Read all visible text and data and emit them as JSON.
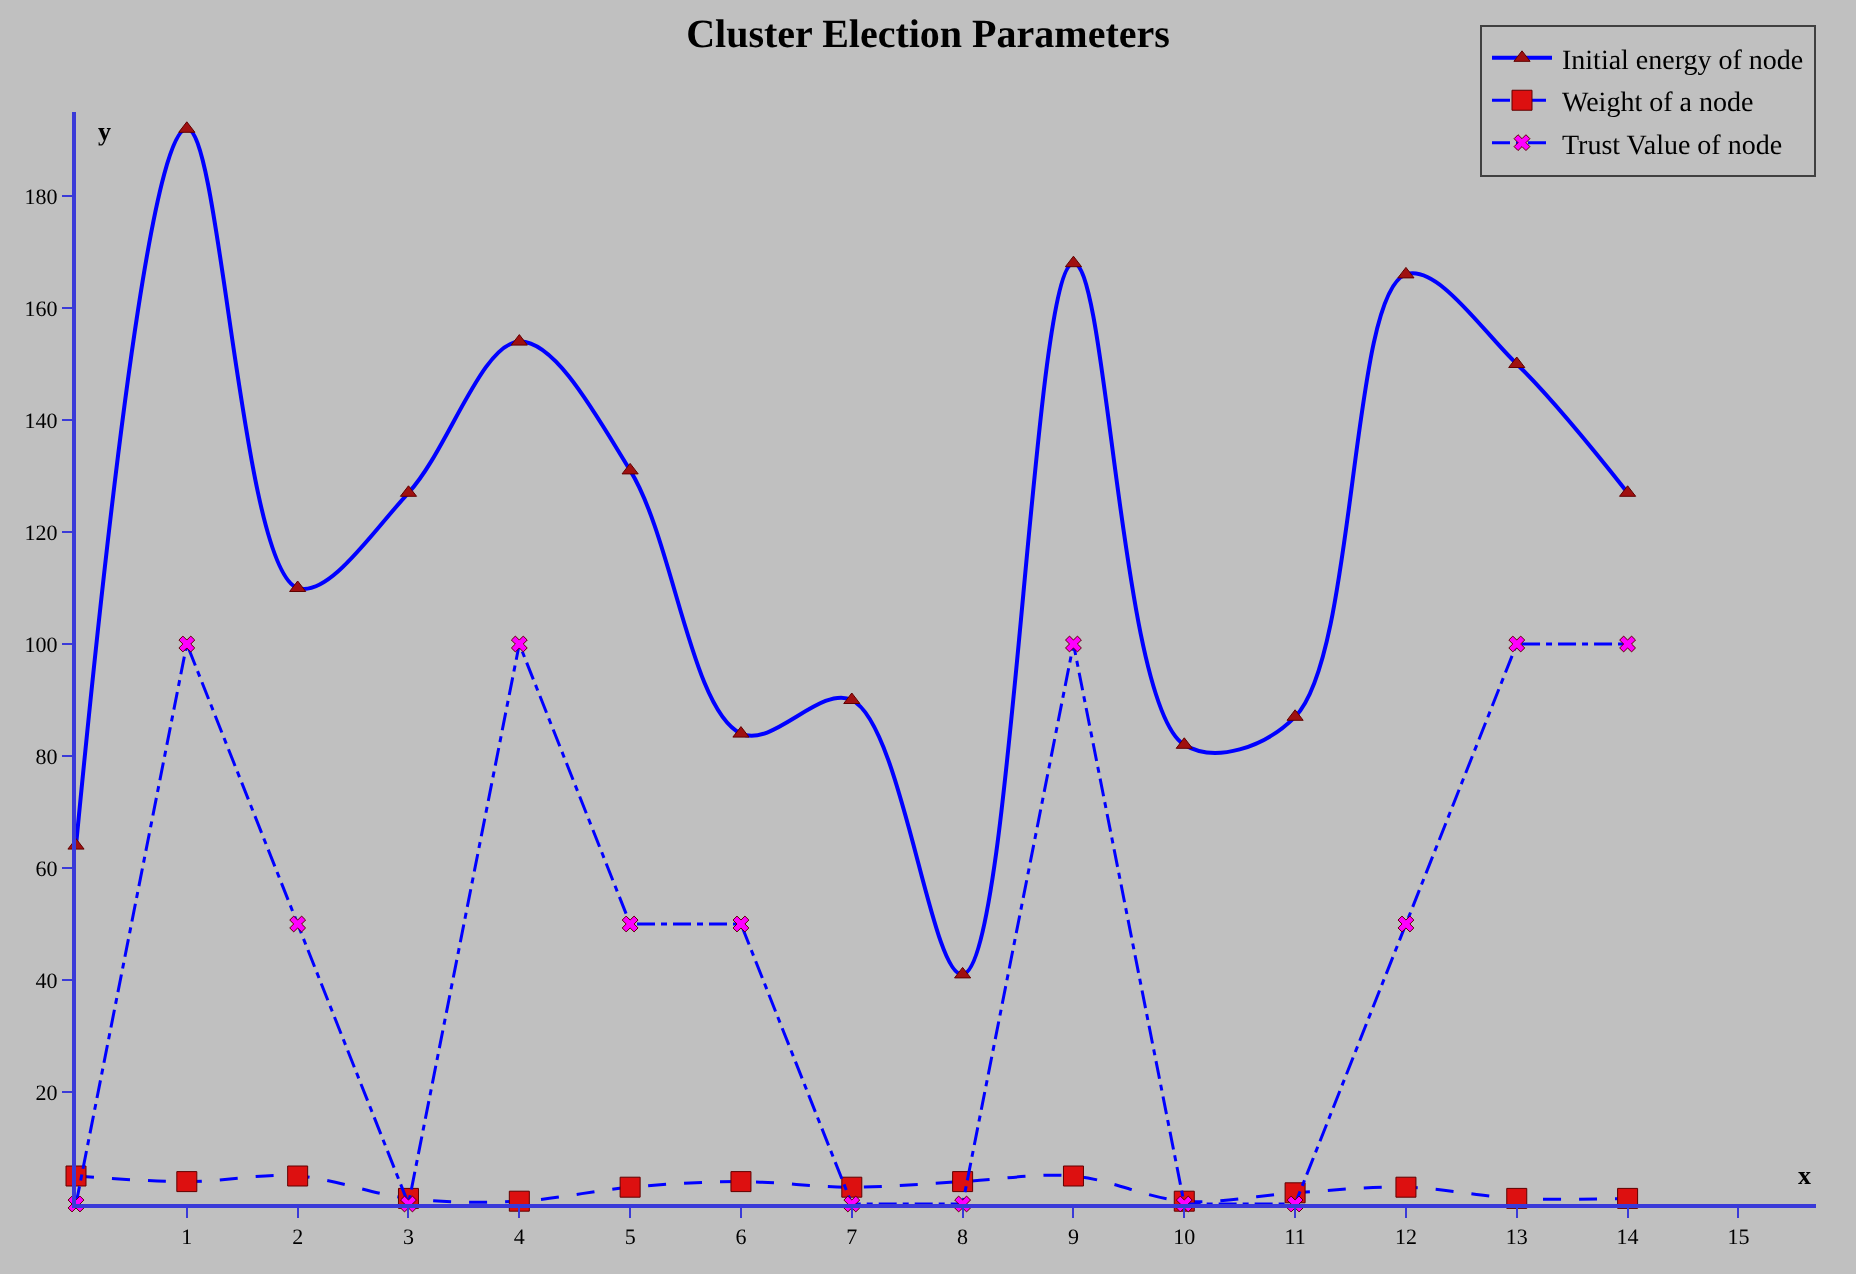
{
  "chart_data": {
    "type": "line",
    "title": "Cluster Election Parameters",
    "xlabel": "x",
    "ylabel": "y",
    "x": [
      0,
      1,
      2,
      3,
      4,
      5,
      6,
      7,
      8,
      9,
      10,
      11,
      12,
      13,
      14
    ],
    "series": [
      {
        "name": "Initial energy of node",
        "color": "#0000ff",
        "marker": "triangle",
        "line_style": "solid",
        "values": [
          64,
          192,
          110,
          127,
          154,
          131,
          84,
          90,
          41,
          168,
          82,
          87,
          166,
          150,
          127
        ]
      },
      {
        "name": "Weight of a node",
        "color": "#0000ff",
        "marker": "square",
        "line_style": "dashed",
        "values": [
          5,
          4,
          5,
          1,
          0.5,
          3,
          4,
          3,
          4,
          5,
          0.5,
          2,
          3,
          1,
          1
        ]
      },
      {
        "name": "Trust Value of node",
        "color": "#0000ff",
        "marker": "cross",
        "line_style": "dashdot",
        "values": [
          0,
          100,
          50,
          0,
          100,
          50,
          50,
          0,
          0,
          100,
          0,
          0,
          50,
          100,
          100
        ]
      }
    ],
    "xlim": [
      0,
      15.7
    ],
    "xticks": [
      1,
      2,
      3,
      4,
      5,
      6,
      7,
      8,
      9,
      10,
      11,
      12,
      13,
      14,
      15
    ],
    "ylim": [
      0,
      195
    ],
    "yticks": [
      20,
      40,
      60,
      80,
      100,
      120,
      140,
      160,
      180
    ],
    "grid": false,
    "legend": "top right"
  }
}
